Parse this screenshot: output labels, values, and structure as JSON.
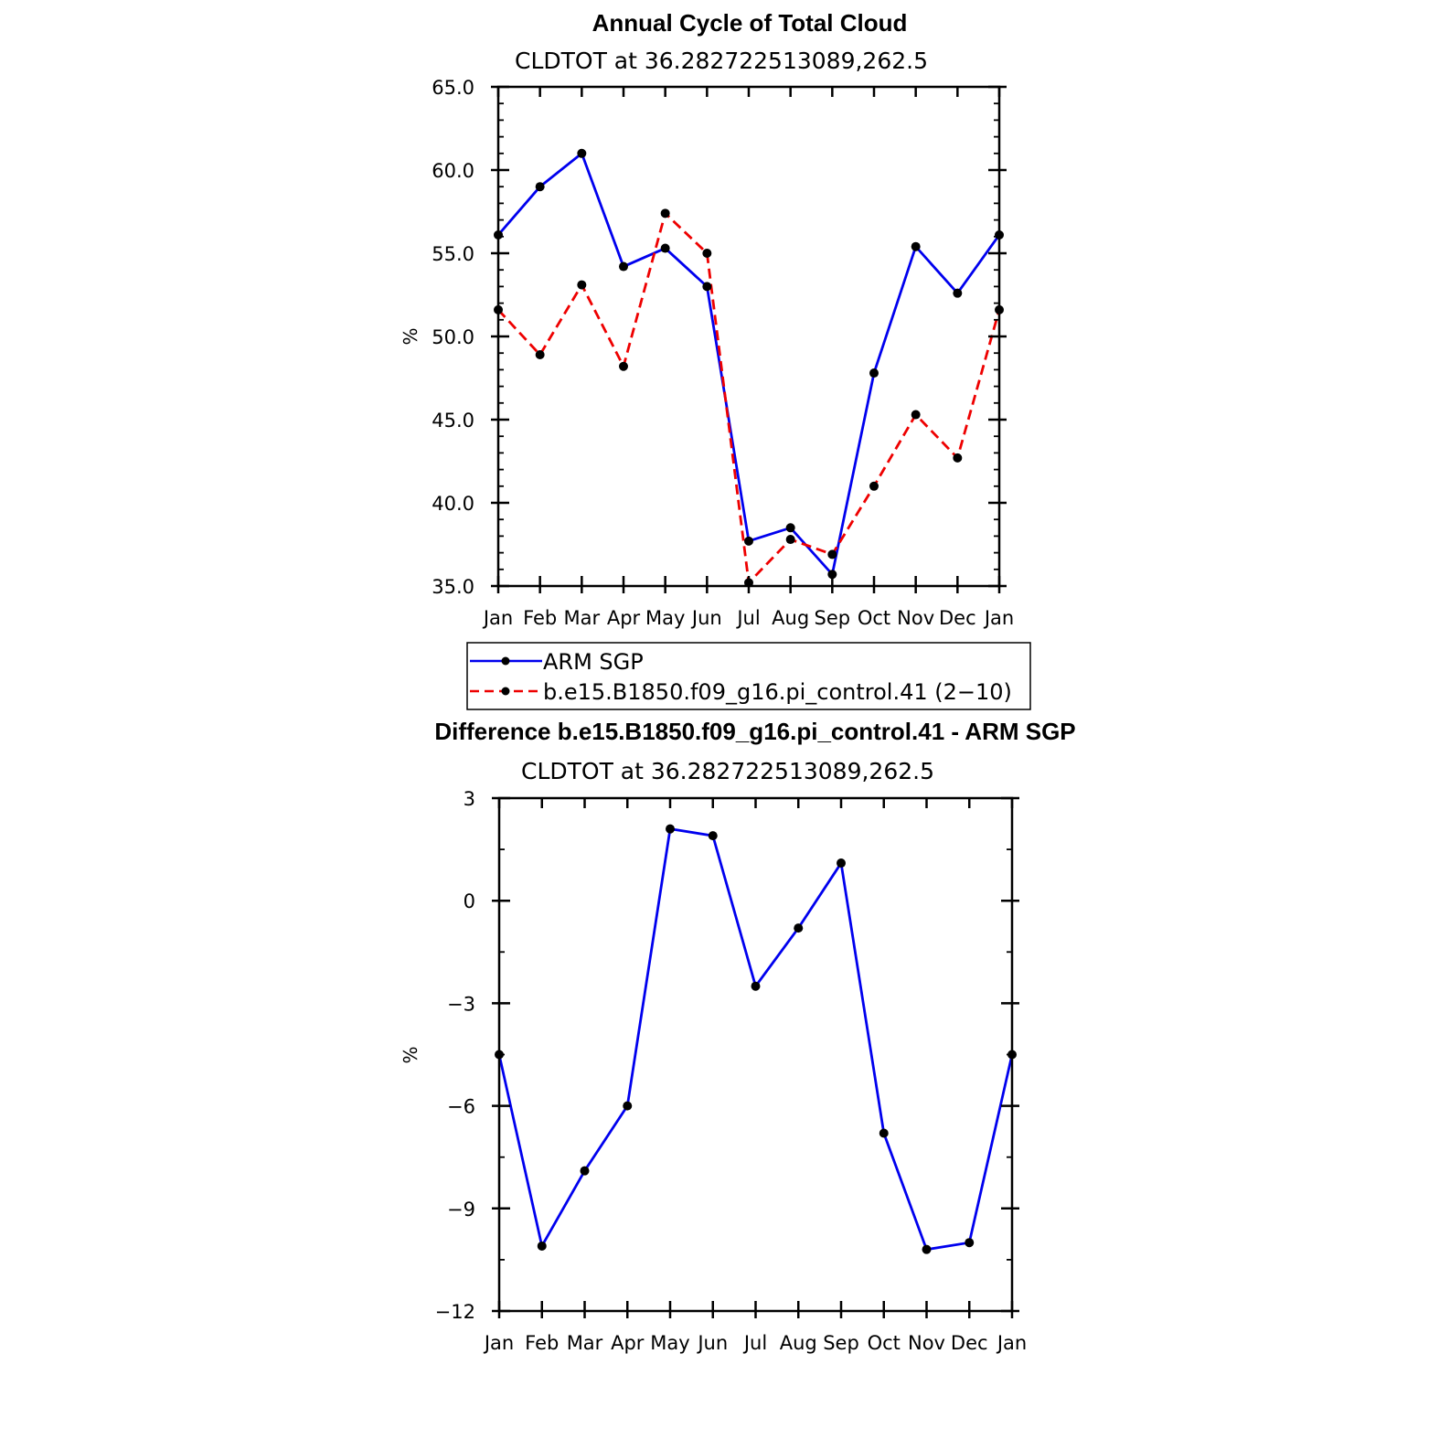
{
  "chart_data": [
    {
      "type": "line",
      "title": "Annual Cycle of Total Cloud",
      "subtitle": "CLDTOT at 36.282722513089,262.5",
      "ylabel": "%",
      "ylim": [
        35.0,
        65.0
      ],
      "yticks": [
        "35.0",
        "40.0",
        "45.0",
        "50.0",
        "55.0",
        "60.0",
        "65.0"
      ],
      "categories": [
        "Jan",
        "Feb",
        "Mar",
        "Apr",
        "May",
        "Jun",
        "Jul",
        "Aug",
        "Sep",
        "Oct",
        "Nov",
        "Dec",
        "Jan"
      ],
      "series": [
        {
          "name": "ARM SGP",
          "color": "#0000ee",
          "dash": "solid",
          "values": [
            56.1,
            59.0,
            61.0,
            54.2,
            55.3,
            53.0,
            37.7,
            38.5,
            35.7,
            47.8,
            55.4,
            52.6,
            56.1
          ]
        },
        {
          "name": "b.e15.B1850.f09_g16.pi_control.41 (2−10)",
          "color": "#ee0000",
          "dash": "dashed",
          "values": [
            51.6,
            48.9,
            53.1,
            48.2,
            57.4,
            55.0,
            35.2,
            37.8,
            36.9,
            41.0,
            45.3,
            42.7,
            51.6
          ]
        }
      ],
      "legend": "below"
    },
    {
      "type": "line",
      "title": "Difference b.e15.B1850.f09_g16.pi_control.41 - ARM SGP",
      "subtitle": "CLDTOT at 36.282722513089,262.5",
      "ylabel": "%",
      "ylim": [
        -12,
        3
      ],
      "yticks": [
        "−12",
        "−9",
        "−6",
        "−3",
        "0",
        "3"
      ],
      "categories": [
        "Jan",
        "Feb",
        "Mar",
        "Apr",
        "May",
        "Jun",
        "Jul",
        "Aug",
        "Sep",
        "Oct",
        "Nov",
        "Dec",
        "Jan"
      ],
      "series": [
        {
          "color": "#0000ee",
          "dash": "solid",
          "values": [
            -4.5,
            -10.1,
            -7.9,
            -6.0,
            2.1,
            1.9,
            -2.5,
            -0.8,
            1.1,
            -6.8,
            -10.2,
            -10.0,
            -4.5
          ]
        }
      ]
    }
  ]
}
